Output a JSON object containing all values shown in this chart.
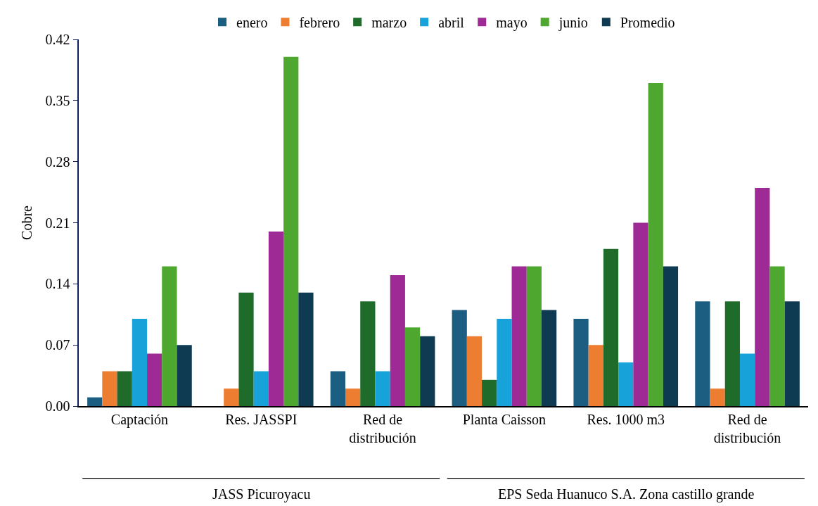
{
  "chart_data": {
    "type": "bar",
    "ylabel": "Cobre",
    "categories": [
      "Captación",
      "Res. JASSPI",
      "Red de distribución",
      "Planta Caisson",
      "Res. 1000 m3",
      "Red de distribución"
    ],
    "series": [
      {
        "name": "enero",
        "color": "#1b5e82",
        "values": [
          0.01,
          0,
          0.04,
          0.11,
          0.1,
          0.12
        ]
      },
      {
        "name": "febrero",
        "color": "#ed7d31",
        "values": [
          0.04,
          0.02,
          0.02,
          0.08,
          0.07,
          0.02
        ]
      },
      {
        "name": "marzo",
        "color": "#1e6b2a",
        "values": [
          0.04,
          0.13,
          0.12,
          0.03,
          0.18,
          0.12
        ]
      },
      {
        "name": "abril",
        "color": "#17a2d9",
        "values": [
          0.1,
          0.04,
          0.04,
          0.1,
          0.05,
          0.06
        ]
      },
      {
        "name": "mayo",
        "color": "#9e2a96",
        "values": [
          0.06,
          0.2,
          0.15,
          0.16,
          0.21,
          0.25
        ]
      },
      {
        "name": "junio",
        "color": "#4ea72e",
        "values": [
          0.16,
          0.4,
          0.09,
          0.16,
          0.37,
          0.16
        ]
      },
      {
        "name": "Promedio",
        "color": "#0e3a52",
        "values": [
          0.07,
          0.13,
          0.08,
          0.11,
          0.16,
          0.12
        ]
      }
    ],
    "ylim": [
      0,
      0.42
    ],
    "yticks": [
      {
        "value": 0,
        "label": "0.00"
      },
      0.07,
      0.14,
      0.21,
      0.28,
      0.35,
      0.42
    ],
    "grid": false,
    "legend": "top",
    "annotations": [
      "JASS Picuroyacu",
      "EPS Seda Huanuco S.A. Zona castillo grande"
    ]
  }
}
